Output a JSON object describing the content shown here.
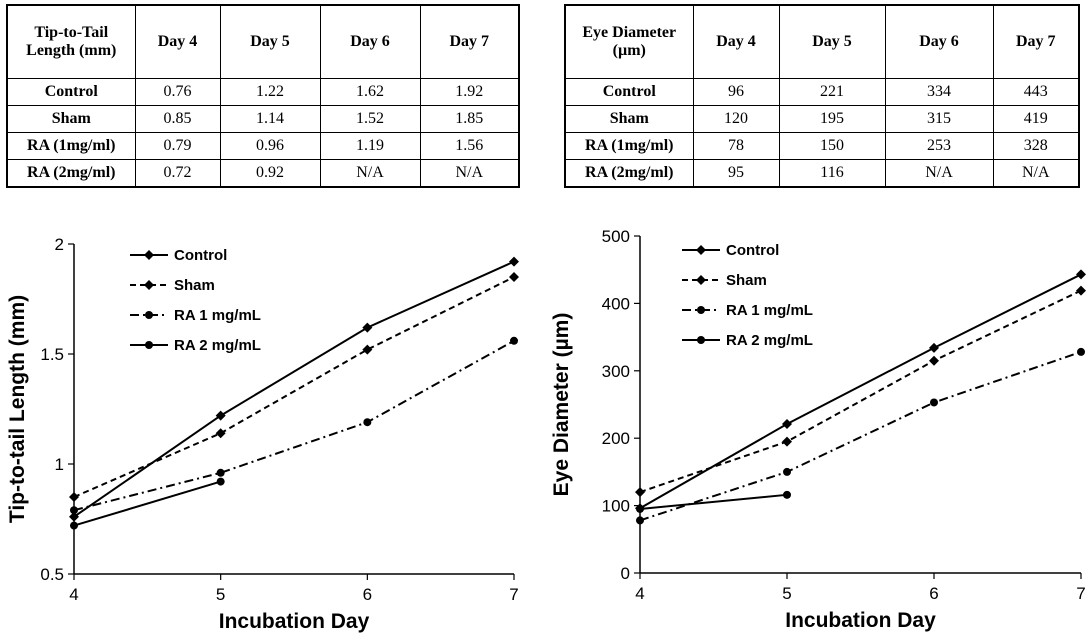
{
  "tables": [
    {
      "id": "length",
      "header": [
        "Tip-to-Tail Length (mm)",
        "Day 4",
        "Day 5",
        "Day 6",
        "Day 7"
      ],
      "rows": [
        [
          "Control",
          "0.76",
          "1.22",
          "1.62",
          "1.92"
        ],
        [
          "Sham",
          "0.85",
          "1.14",
          "1.52",
          "1.85"
        ],
        [
          "RA (1mg/ml)",
          "0.79",
          "0.96",
          "1.19",
          "1.56"
        ],
        [
          "RA (2mg/ml)",
          "0.72",
          "0.92",
          "N/A",
          "N/A"
        ]
      ]
    },
    {
      "id": "eye",
      "header": [
        "Eye Diameter (µm)",
        "Day 4",
        "Day 5",
        "Day 6",
        "Day 7"
      ],
      "rows": [
        [
          "Control",
          "96",
          "221",
          "334",
          "443"
        ],
        [
          "Sham",
          "120",
          "195",
          "315",
          "419"
        ],
        [
          "RA (1mg/ml)",
          "78",
          "150",
          "253",
          "328"
        ],
        [
          "RA (2mg/ml)",
          "95",
          "116",
          "N/A",
          "N/A"
        ]
      ]
    }
  ],
  "chart_data": [
    {
      "type": "line",
      "title": "",
      "xlabel": "Incubation Day",
      "ylabel": "Tip-to-tail Length (mm)",
      "x": [
        4,
        5,
        6,
        7
      ],
      "xlim": [
        4,
        7
      ],
      "ylim": [
        0.5,
        2
      ],
      "xticks": [
        "4",
        "5",
        "6",
        "7"
      ],
      "yticks": [
        "0.5",
        "1",
        "1.5",
        "2"
      ],
      "grid": false,
      "legend_position": "top-left",
      "series": [
        {
          "name": "Control",
          "values": [
            0.76,
            1.22,
            1.62,
            1.92
          ],
          "line": "solid",
          "marker": "diamond"
        },
        {
          "name": "Sham",
          "values": [
            0.85,
            1.14,
            1.52,
            1.85
          ],
          "line": "dashed",
          "marker": "diamond"
        },
        {
          "name": "RA 1 mg/mL",
          "values": [
            0.79,
            0.96,
            1.19,
            1.56
          ],
          "line": "dashdot",
          "marker": "circle"
        },
        {
          "name": "RA 2 mg/mL",
          "values": [
            0.72,
            0.92,
            null,
            null
          ],
          "line": "solid",
          "marker": "circle"
        }
      ]
    },
    {
      "type": "line",
      "title": "",
      "xlabel": "Incubation Day",
      "ylabel": "Eye Diameter (µm)",
      "x": [
        4,
        5,
        6,
        7
      ],
      "xlim": [
        4,
        7
      ],
      "ylim": [
        0,
        500
      ],
      "xticks": [
        "4",
        "5",
        "6",
        "7"
      ],
      "yticks": [
        "0",
        "100",
        "200",
        "300",
        "400",
        "500"
      ],
      "grid": false,
      "legend_position": "top-left",
      "series": [
        {
          "name": "Control",
          "values": [
            96,
            221,
            334,
            443
          ],
          "line": "solid",
          "marker": "diamond"
        },
        {
          "name": "Sham",
          "values": [
            120,
            195,
            315,
            419
          ],
          "line": "dashed",
          "marker": "diamond"
        },
        {
          "name": "RA 1 mg/mL",
          "values": [
            78,
            150,
            253,
            328
          ],
          "line": "dashdot",
          "marker": "circle"
        },
        {
          "name": "RA 2 mg/mL",
          "values": [
            95,
            116,
            null,
            null
          ],
          "line": "solid",
          "marker": "circle"
        }
      ]
    }
  ]
}
